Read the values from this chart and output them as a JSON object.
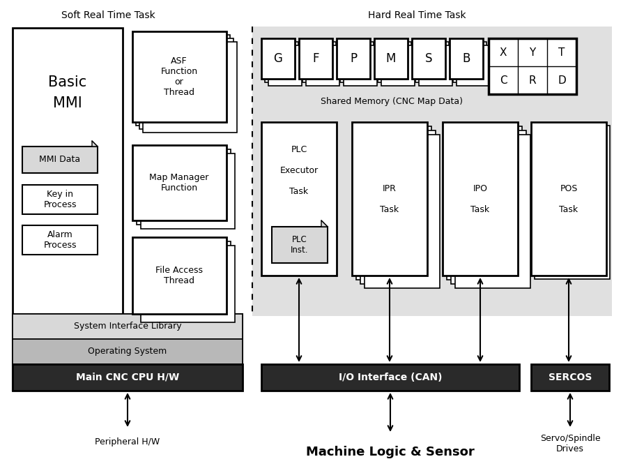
{
  "title_soft": "Soft Real Time Task",
  "title_hard": "Hard Real Time Task",
  "bg_color": "#ffffff",
  "gray_bg": "#e0e0e0",
  "light_gray_bar": "#d4d4d4",
  "dark_bar": "#2a2a2a",
  "med_gray": "#b8b8b8",
  "light_bar": "#d8d8d8",
  "shared_mem_labels_row1": [
    "G",
    "F",
    "P",
    "M",
    "S",
    "B"
  ],
  "labels_grid": [
    [
      "X",
      "Y",
      "T"
    ],
    [
      "C",
      "R",
      "D"
    ]
  ],
  "task_labels": [
    "PLC\nExecutor\nTask",
    "IPR\nTask",
    "IPO\nTask",
    "POS\nTask"
  ]
}
